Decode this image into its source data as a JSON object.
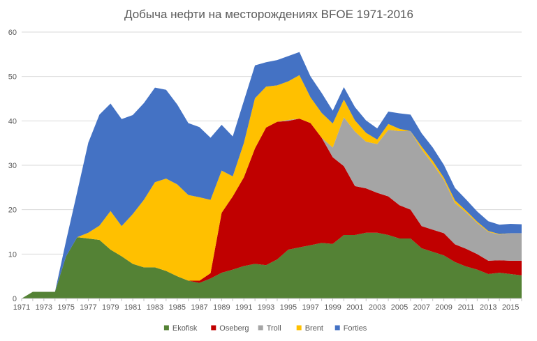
{
  "chart_data": {
    "type": "area",
    "stacked": true,
    "title": "Добыча нефти на месторождениях BFOE 1971-2016",
    "xlabel": "",
    "ylabel": "",
    "ylim": [
      0,
      60
    ],
    "yticks": [
      0,
      10,
      20,
      30,
      40,
      50,
      60
    ],
    "xlim": [
      1971,
      2016
    ],
    "xticks": [
      1971,
      1973,
      1975,
      1977,
      1979,
      1981,
      1983,
      1985,
      1987,
      1989,
      1991,
      1993,
      1995,
      1997,
      1999,
      2001,
      2003,
      2005,
      2007,
      2009,
      2011,
      2013,
      2015
    ],
    "grid": true,
    "legend_position": "bottom",
    "x": [
      1971,
      1972,
      1973,
      1974,
      1975,
      1976,
      1977,
      1978,
      1979,
      1980,
      1981,
      1982,
      1983,
      1984,
      1985,
      1986,
      1987,
      1988,
      1989,
      1990,
      1991,
      1992,
      1993,
      1994,
      1995,
      1996,
      1997,
      1998,
      1999,
      2000,
      2001,
      2002,
      2003,
      2004,
      2005,
      2006,
      2007,
      2008,
      2009,
      2010,
      2011,
      2012,
      2013,
      2014,
      2015,
      2016
    ],
    "series": [
      {
        "name": "Ekofisk",
        "color": "#548235",
        "values": [
          0,
          1.5,
          1.5,
          1.5,
          9.5,
          13.8,
          13.5,
          13.2,
          11,
          9.5,
          7.8,
          7,
          7,
          6.2,
          5,
          4,
          3.5,
          4.5,
          5.8,
          6.5,
          7.3,
          7.8,
          7.5,
          8.8,
          11,
          11.5,
          12,
          12.5,
          12.3,
          14.3,
          14.3,
          14.8,
          14.8,
          14.3,
          13.5,
          13.5,
          11.3,
          10.5,
          9.7,
          8.2,
          7.2,
          6.5,
          5.5,
          5.8,
          5.5,
          5.2
        ]
      },
      {
        "name": "Oseberg",
        "color": "#c00000",
        "values": [
          0,
          0,
          0,
          0,
          0,
          0,
          0,
          0,
          0,
          0,
          0,
          0,
          0,
          0,
          0,
          0,
          0.5,
          1.2,
          13.5,
          16.5,
          20,
          26,
          31,
          31,
          29,
          29,
          27.5,
          23.7,
          19.5,
          15.5,
          11,
          10,
          9,
          8.7,
          7.5,
          6.5,
          5,
          5,
          5,
          4,
          4,
          3.5,
          3,
          2.8,
          3,
          3.3
        ]
      },
      {
        "name": "Troll",
        "color": "#a5a5a5",
        "values": [
          0,
          0,
          0,
          0,
          0,
          0,
          0,
          0,
          0,
          0,
          0,
          0,
          0,
          0,
          0,
          0,
          0,
          0,
          0,
          0,
          0,
          0,
          0,
          0,
          0.2,
          0,
          0,
          0,
          2.2,
          11,
          12.3,
          10.5,
          11,
          15,
          16.7,
          17.7,
          17.3,
          14.8,
          12,
          9.3,
          8.2,
          7,
          6.5,
          5.8,
          6.2,
          6.2
        ]
      },
      {
        "name": "Brent",
        "color": "#ffc000",
        "values": [
          0,
          0,
          0,
          0,
          0,
          0,
          1.3,
          3.2,
          8.7,
          6.8,
          11.2,
          15.2,
          19.2,
          20.8,
          20.7,
          19.3,
          18.8,
          16.5,
          9.5,
          4.5,
          7.7,
          11.3,
          9.2,
          8.2,
          8.7,
          9.8,
          5.8,
          5.6,
          5.4,
          4,
          2.5,
          2,
          1,
          1.3,
          0.5,
          0,
          0.6,
          0.7,
          0.5,
          0.6,
          0.4,
          0.3,
          0.2,
          0.1,
          0,
          0
        ]
      },
      {
        "name": "Forties",
        "color": "#4472c4",
        "values": [
          0,
          0,
          0,
          0,
          3.5,
          10.2,
          20.3,
          25,
          24.2,
          24.1,
          22.3,
          21.8,
          21.3,
          20,
          18,
          16.2,
          15.8,
          14,
          10.3,
          9,
          9.5,
          7.4,
          5.5,
          5.7,
          5.7,
          5.2,
          4.7,
          4.5,
          2.9,
          2.8,
          3,
          2.8,
          2.5,
          2.8,
          3.5,
          3.7,
          3,
          3,
          2.9,
          2.8,
          2.5,
          2.3,
          2.2,
          2.1,
          2.1,
          2
        ]
      }
    ]
  }
}
